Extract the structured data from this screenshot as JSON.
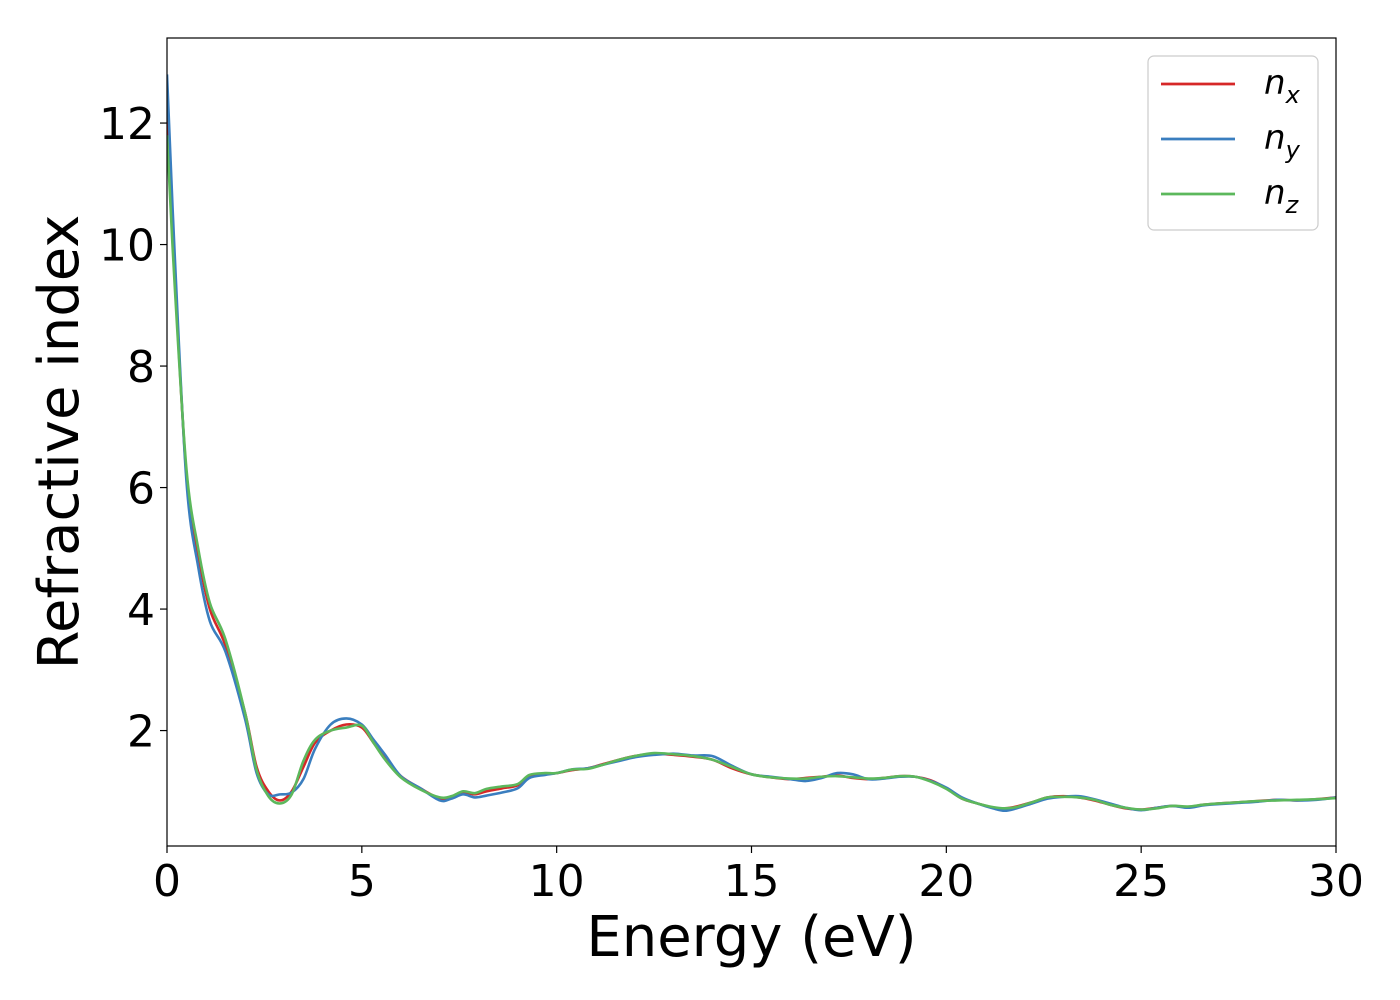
{
  "chart_data": {
    "type": "line",
    "xlabel": "Energy (eV)",
    "ylabel": "Refractive index",
    "xlim": [
      0,
      30
    ],
    "ylim": [
      0.1,
      13.4
    ],
    "xticks": [
      0,
      5,
      10,
      15,
      20,
      25,
      30
    ],
    "xtick_labels": [
      "0",
      "5",
      "10",
      "15",
      "20",
      "25",
      "30"
    ],
    "yticks": [
      2,
      4,
      6,
      8,
      10,
      12
    ],
    "ytick_labels": [
      "2",
      "4",
      "6",
      "8",
      "10",
      "12"
    ],
    "grid": false,
    "legend_position": "top-right",
    "series": [
      {
        "name": "n",
        "subscript": "x",
        "color": "#d62728",
        "x": [
          0,
          0.2,
          0.5,
          0.8,
          1.1,
          1.5,
          2.0,
          2.3,
          2.6,
          2.9,
          3.2,
          3.5,
          3.8,
          4.2,
          4.6,
          5.0,
          5.3,
          5.6,
          6.0,
          6.5,
          7.0,
          7.3,
          7.6,
          7.9,
          8.2,
          8.6,
          9.0,
          9.3,
          9.7,
          10.0,
          10.4,
          10.8,
          11.2,
          11.6,
          12.0,
          12.5,
          13.0,
          13.5,
          14.0,
          14.5,
          15.0,
          15.5,
          16.0,
          16.4,
          16.8,
          17.2,
          17.6,
          18.0,
          18.4,
          18.8,
          19.2,
          19.6,
          20.0,
          20.4,
          20.8,
          21.2,
          21.5,
          21.8,
          22.2,
          22.6,
          23.0,
          23.4,
          23.8,
          24.2,
          24.6,
          25.0,
          25.4,
          25.8,
          26.2,
          26.6,
          27.0,
          27.5,
          28.0,
          28.5,
          29.0,
          29.5,
          30.0
        ],
        "y": [
          12.2,
          9.5,
          6.2,
          4.9,
          4.0,
          3.4,
          2.3,
          1.4,
          1.0,
          0.85,
          1.0,
          1.4,
          1.8,
          2.0,
          2.1,
          2.05,
          1.8,
          1.55,
          1.25,
          1.05,
          0.88,
          0.9,
          0.98,
          0.95,
          1.0,
          1.05,
          1.1,
          1.25,
          1.28,
          1.3,
          1.35,
          1.38,
          1.45,
          1.52,
          1.58,
          1.62,
          1.6,
          1.57,
          1.52,
          1.38,
          1.28,
          1.23,
          1.2,
          1.22,
          1.24,
          1.26,
          1.22,
          1.2,
          1.22,
          1.25,
          1.24,
          1.18,
          1.05,
          0.88,
          0.8,
          0.73,
          0.72,
          0.75,
          0.82,
          0.9,
          0.92,
          0.9,
          0.85,
          0.78,
          0.72,
          0.7,
          0.73,
          0.76,
          0.74,
          0.78,
          0.8,
          0.82,
          0.84,
          0.86,
          0.85,
          0.87,
          0.9
        ]
      },
      {
        "name": "n",
        "subscript": "y",
        "color": "#3a7ebf",
        "x": [
          0,
          0.2,
          0.5,
          0.8,
          1.1,
          1.5,
          2.0,
          2.3,
          2.6,
          2.9,
          3.2,
          3.5,
          3.8,
          4.2,
          4.6,
          5.0,
          5.3,
          5.6,
          6.0,
          6.5,
          7.0,
          7.3,
          7.6,
          7.9,
          8.2,
          8.6,
          9.0,
          9.3,
          9.7,
          10.0,
          10.4,
          10.8,
          11.2,
          11.6,
          12.0,
          12.5,
          13.0,
          13.5,
          14.0,
          14.5,
          15.0,
          15.5,
          16.0,
          16.4,
          16.8,
          17.2,
          17.6,
          18.0,
          18.4,
          18.8,
          19.2,
          19.6,
          20.0,
          20.4,
          20.8,
          21.2,
          21.5,
          21.8,
          22.2,
          22.6,
          23.0,
          23.4,
          23.8,
          24.2,
          24.6,
          25.0,
          25.4,
          25.8,
          26.2,
          26.6,
          27.0,
          27.5,
          28.0,
          28.5,
          29.0,
          29.5,
          30.0
        ],
        "y": [
          12.8,
          9.8,
          6.1,
          4.7,
          3.8,
          3.3,
          2.2,
          1.3,
          0.95,
          0.95,
          0.98,
          1.2,
          1.7,
          2.1,
          2.2,
          2.1,
          1.85,
          1.6,
          1.25,
          1.05,
          0.85,
          0.88,
          0.95,
          0.9,
          0.93,
          0.98,
          1.05,
          1.22,
          1.27,
          1.3,
          1.36,
          1.38,
          1.44,
          1.5,
          1.56,
          1.6,
          1.62,
          1.59,
          1.58,
          1.42,
          1.28,
          1.24,
          1.2,
          1.17,
          1.22,
          1.3,
          1.28,
          1.2,
          1.21,
          1.24,
          1.24,
          1.17,
          1.06,
          0.9,
          0.8,
          0.72,
          0.68,
          0.72,
          0.8,
          0.88,
          0.91,
          0.92,
          0.87,
          0.8,
          0.73,
          0.69,
          0.73,
          0.76,
          0.73,
          0.77,
          0.79,
          0.81,
          0.83,
          0.86,
          0.85,
          0.86,
          0.9
        ]
      },
      {
        "name": "n",
        "subscript": "z",
        "color": "#5cb85c",
        "x": [
          0,
          0.2,
          0.5,
          0.8,
          1.1,
          1.5,
          2.0,
          2.3,
          2.6,
          2.9,
          3.2,
          3.5,
          3.8,
          4.2,
          4.6,
          5.0,
          5.3,
          5.6,
          6.0,
          6.5,
          7.0,
          7.3,
          7.6,
          7.9,
          8.2,
          8.6,
          9.0,
          9.3,
          9.7,
          10.0,
          10.4,
          10.8,
          11.2,
          11.6,
          12.0,
          12.5,
          13.0,
          13.5,
          14.0,
          14.5,
          15.0,
          15.5,
          16.0,
          16.4,
          16.8,
          17.2,
          17.6,
          18.0,
          18.4,
          18.8,
          19.2,
          19.6,
          20.0,
          20.4,
          20.8,
          21.2,
          21.5,
          21.8,
          22.2,
          22.6,
          23.0,
          23.4,
          23.8,
          24.2,
          24.6,
          25.0,
          25.4,
          25.8,
          26.2,
          26.6,
          27.0,
          27.5,
          28.0,
          28.5,
          29.0,
          29.5,
          30.0
        ],
        "y": [
          11.8,
          9.3,
          6.3,
          5.0,
          4.1,
          3.5,
          2.3,
          1.35,
          0.92,
          0.8,
          0.95,
          1.5,
          1.85,
          2.0,
          2.05,
          2.08,
          1.8,
          1.52,
          1.23,
          1.03,
          0.9,
          0.92,
          1.0,
          0.97,
          1.04,
          1.08,
          1.12,
          1.27,
          1.3,
          1.3,
          1.36,
          1.37,
          1.44,
          1.52,
          1.58,
          1.63,
          1.61,
          1.58,
          1.52,
          1.4,
          1.28,
          1.23,
          1.21,
          1.21,
          1.24,
          1.25,
          1.23,
          1.21,
          1.22,
          1.25,
          1.24,
          1.16,
          1.04,
          0.88,
          0.8,
          0.74,
          0.72,
          0.74,
          0.82,
          0.9,
          0.91,
          0.9,
          0.86,
          0.78,
          0.73,
          0.7,
          0.72,
          0.76,
          0.75,
          0.78,
          0.8,
          0.82,
          0.84,
          0.85,
          0.86,
          0.87,
          0.89
        ]
      }
    ]
  }
}
